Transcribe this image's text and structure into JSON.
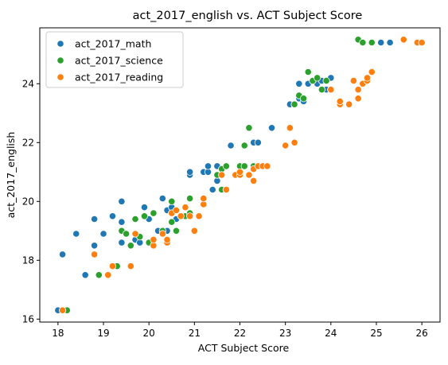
{
  "chart_data": {
    "type": "scatter",
    "title": "act_2017_english vs. ACT Subject Score",
    "xlabel": "ACT Subject Score",
    "ylabel": "act_2017_english",
    "xlim": [
      17.6,
      26.4
    ],
    "ylim": [
      15.9,
      25.9
    ],
    "xticks": [
      18,
      19,
      20,
      21,
      22,
      23,
      24,
      25,
      26
    ],
    "yticks": [
      16,
      18,
      20,
      22,
      24
    ],
    "grid": false,
    "legend_position": "top-left",
    "series": [
      {
        "name": "act_2017_math",
        "color": "#1f77b4",
        "points": [
          [
            18.0,
            16.3
          ],
          [
            18.1,
            18.2
          ],
          [
            18.4,
            18.9
          ],
          [
            18.6,
            17.5
          ],
          [
            18.8,
            18.5
          ],
          [
            18.8,
            19.4
          ],
          [
            19.0,
            18.9
          ],
          [
            19.2,
            19.5
          ],
          [
            19.4,
            18.6
          ],
          [
            19.4,
            19.3
          ],
          [
            19.4,
            20.0
          ],
          [
            19.7,
            18.7
          ],
          [
            19.8,
            18.6
          ],
          [
            19.9,
            19.8
          ],
          [
            20.0,
            19.4
          ],
          [
            20.2,
            19.0
          ],
          [
            20.3,
            20.1
          ],
          [
            20.4,
            19.0
          ],
          [
            20.4,
            19.7
          ],
          [
            20.5,
            19.8
          ],
          [
            20.6,
            19.4
          ],
          [
            20.7,
            19.5
          ],
          [
            20.8,
            19.5
          ],
          [
            20.9,
            20.9
          ],
          [
            20.9,
            21.0
          ],
          [
            21.2,
            21.0
          ],
          [
            21.3,
            21.0
          ],
          [
            21.3,
            21.2
          ],
          [
            21.4,
            20.4
          ],
          [
            21.5,
            20.7
          ],
          [
            21.5,
            21.2
          ],
          [
            21.6,
            20.4
          ],
          [
            21.8,
            21.9
          ],
          [
            22.0,
            20.9
          ],
          [
            22.3,
            22.0
          ],
          [
            22.4,
            22.0
          ],
          [
            22.7,
            22.5
          ],
          [
            23.1,
            23.3
          ],
          [
            23.2,
            23.3
          ],
          [
            23.3,
            23.5
          ],
          [
            23.3,
            24.0
          ],
          [
            23.4,
            23.4
          ],
          [
            23.5,
            24.0
          ],
          [
            23.6,
            24.1
          ],
          [
            23.7,
            24.0
          ],
          [
            23.8,
            24.1
          ],
          [
            23.9,
            23.8
          ],
          [
            24.0,
            24.2
          ],
          [
            24.0,
            23.8
          ],
          [
            24.7,
            25.4
          ],
          [
            24.9,
            25.4
          ],
          [
            25.1,
            25.4
          ],
          [
            25.3,
            25.4
          ]
        ]
      },
      {
        "name": "act_2017_science",
        "color": "#2ca02c",
        "points": [
          [
            18.2,
            16.3
          ],
          [
            18.9,
            17.5
          ],
          [
            19.3,
            17.8
          ],
          [
            19.4,
            19.0
          ],
          [
            19.5,
            18.9
          ],
          [
            19.6,
            18.5
          ],
          [
            19.7,
            19.4
          ],
          [
            19.8,
            18.8
          ],
          [
            19.9,
            19.5
          ],
          [
            20.0,
            18.6
          ],
          [
            20.1,
            19.6
          ],
          [
            20.3,
            19.0
          ],
          [
            20.5,
            19.3
          ],
          [
            20.5,
            19.6
          ],
          [
            20.5,
            20.0
          ],
          [
            20.6,
            19.0
          ],
          [
            20.7,
            19.5
          ],
          [
            20.8,
            19.5
          ],
          [
            20.9,
            19.6
          ],
          [
            20.9,
            20.1
          ],
          [
            21.2,
            20.1
          ],
          [
            21.5,
            20.9
          ],
          [
            21.6,
            20.4
          ],
          [
            21.6,
            21.1
          ],
          [
            21.7,
            21.2
          ],
          [
            22.0,
            20.9
          ],
          [
            22.0,
            21.2
          ],
          [
            22.1,
            21.2
          ],
          [
            22.1,
            21.9
          ],
          [
            22.2,
            22.5
          ],
          [
            22.3,
            21.2
          ],
          [
            23.2,
            23.3
          ],
          [
            23.3,
            23.6
          ],
          [
            23.4,
            23.5
          ],
          [
            23.5,
            24.4
          ],
          [
            23.6,
            24.1
          ],
          [
            23.7,
            24.2
          ],
          [
            23.8,
            23.8
          ],
          [
            23.9,
            24.1
          ],
          [
            24.6,
            25.5
          ],
          [
            24.7,
            25.4
          ],
          [
            24.9,
            25.4
          ]
        ]
      },
      {
        "name": "act_2017_reading",
        "color": "#ff7f0e",
        "points": [
          [
            18.1,
            16.3
          ],
          [
            18.8,
            18.2
          ],
          [
            19.1,
            17.5
          ],
          [
            19.2,
            17.8
          ],
          [
            19.6,
            17.8
          ],
          [
            19.7,
            18.9
          ],
          [
            20.1,
            18.5
          ],
          [
            20.1,
            18.7
          ],
          [
            20.3,
            18.9
          ],
          [
            20.4,
            18.6
          ],
          [
            20.4,
            18.7
          ],
          [
            20.5,
            19.6
          ],
          [
            20.6,
            19.7
          ],
          [
            20.7,
            19.5
          ],
          [
            20.8,
            19.8
          ],
          [
            20.9,
            19.5
          ],
          [
            21.0,
            19.0
          ],
          [
            21.1,
            19.5
          ],
          [
            21.2,
            19.9
          ],
          [
            21.2,
            20.1
          ],
          [
            21.6,
            20.9
          ],
          [
            21.7,
            20.4
          ],
          [
            21.9,
            20.9
          ],
          [
            22.0,
            20.9
          ],
          [
            22.0,
            21.0
          ],
          [
            22.2,
            20.9
          ],
          [
            22.3,
            20.7
          ],
          [
            22.3,
            21.1
          ],
          [
            22.4,
            21.2
          ],
          [
            22.5,
            21.2
          ],
          [
            22.6,
            21.2
          ],
          [
            23.0,
            21.9
          ],
          [
            23.1,
            22.5
          ],
          [
            23.2,
            22.0
          ],
          [
            24.0,
            23.8
          ],
          [
            24.2,
            23.3
          ],
          [
            24.2,
            23.4
          ],
          [
            24.4,
            23.3
          ],
          [
            24.5,
            24.1
          ],
          [
            24.6,
            23.5
          ],
          [
            24.6,
            23.8
          ],
          [
            24.7,
            24.0
          ],
          [
            24.8,
            24.1
          ],
          [
            24.8,
            24.2
          ],
          [
            24.9,
            24.4
          ],
          [
            25.6,
            25.5
          ],
          [
            25.9,
            25.4
          ],
          [
            26.0,
            25.4
          ]
        ]
      }
    ]
  }
}
